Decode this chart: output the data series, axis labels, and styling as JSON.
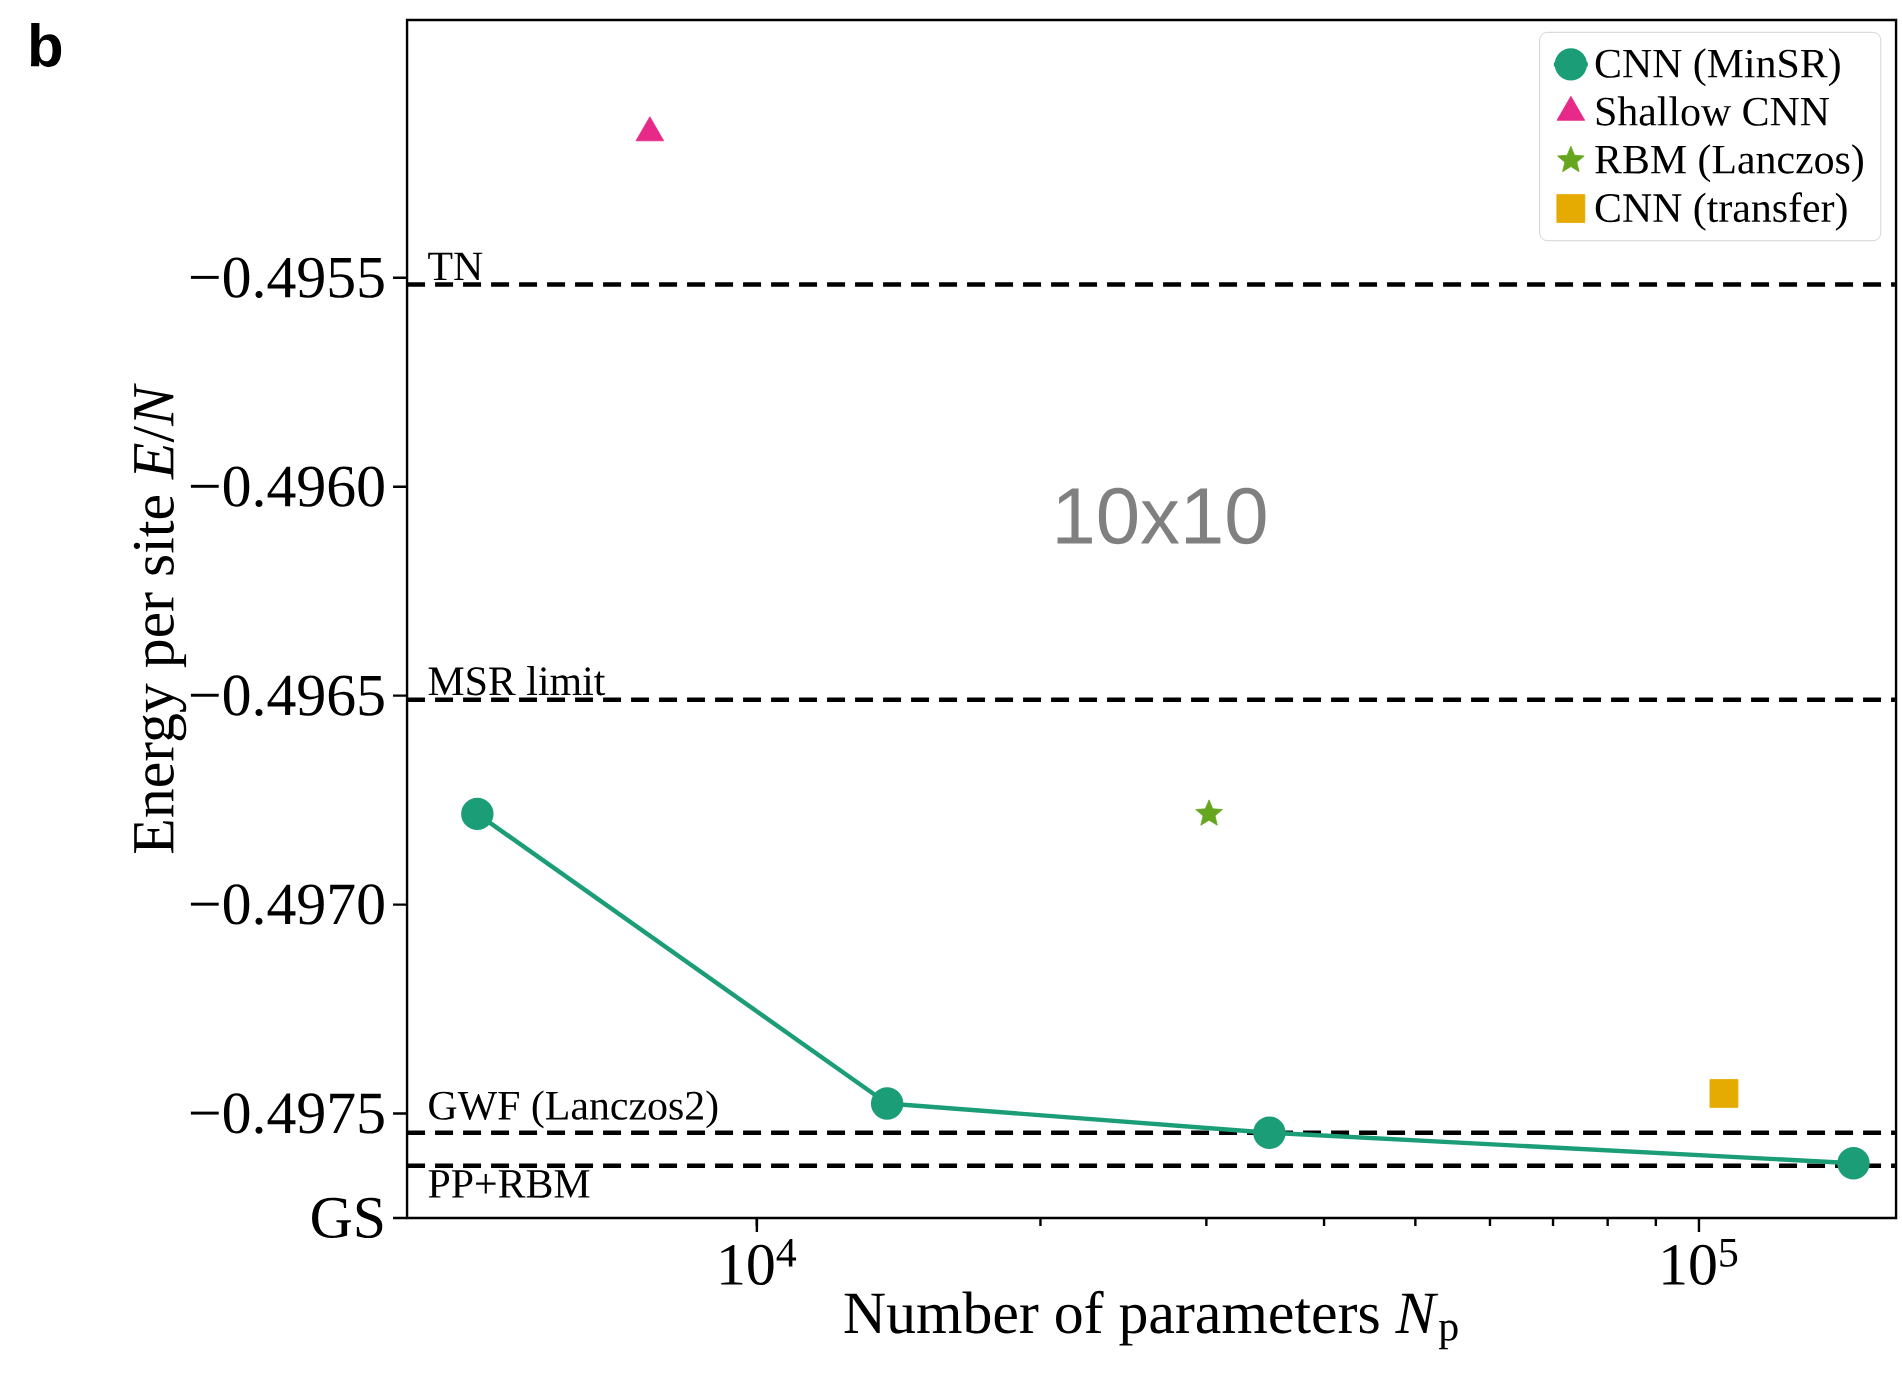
{
  "chart_data": {
    "type": "line",
    "xlabel": "Number of parameters *N*$_{p}$",
    "ylabel": "Energy per site *E*/*N*",
    "annotations": [
      "b",
      "10x10"
    ],
    "log": "x",
    "xlim": [
      4253,
      161900
    ],
    "ylim": [
      -0.49775,
      -0.494883
    ],
    "xticks": [
      {
        "value": 10000,
        "label": "10$^{4}$"
      },
      {
        "value": 100000,
        "label": "10$^{5}$"
      }
    ],
    "yticks": [
      {
        "value": -0.49775,
        "label": "GS"
      },
      {
        "value": -0.4975,
        "label": "−0.4975"
      },
      {
        "value": -0.497,
        "label": "−0.4970"
      },
      {
        "value": -0.4965,
        "label": "−0.4965"
      },
      {
        "value": -0.496,
        "label": "−0.4960"
      },
      {
        "value": -0.4955,
        "label": "−0.4955"
      }
    ],
    "legend": "top right",
    "series": [
      {
        "name": "CNN (MinSR)",
        "type": "line",
        "marker": "circle",
        "color": "#1b9e77",
        "x": [
          5050,
          13750,
          35000,
          145900
        ],
        "values": [
          -0.496783,
          -0.497476,
          -0.497546,
          -0.497619
        ]
      },
      {
        "name": "Shallow CNN",
        "type": "scatter",
        "marker": "triangle",
        "color": "#e7298a",
        "x": [
          7700
        ],
        "values": [
          -0.495153
        ]
      },
      {
        "name": "RBM (Lanczos)",
        "type": "scatter",
        "marker": "star",
        "color": "#66a61e",
        "x": [
          30200
        ],
        "values": [
          -0.496783
        ]
      },
      {
        "name": "CNN (transfer)",
        "type": "scatter",
        "marker": "square",
        "color": "#e6ab02",
        "x": [
          106300
        ],
        "values": [
          -0.497452
        ]
      }
    ],
    "ref_lines": [
      {
        "axis": "y",
        "value": -0.495516,
        "label": "TN",
        "line_style": "dashed",
        "color": "#000000"
      },
      {
        "axis": "y",
        "value": -0.49651,
        "label": "MSR limit",
        "line_style": "dashed",
        "color": "#000000"
      },
      {
        "axis": "y",
        "value": -0.497546,
        "label": "GWF (Lanczos2)",
        "line_style": "dashed",
        "color": "#000000"
      },
      {
        "axis": "y",
        "value": -0.497625,
        "label": "PP+RBM",
        "line_style": "dashed",
        "color": "#000000"
      }
    ]
  }
}
